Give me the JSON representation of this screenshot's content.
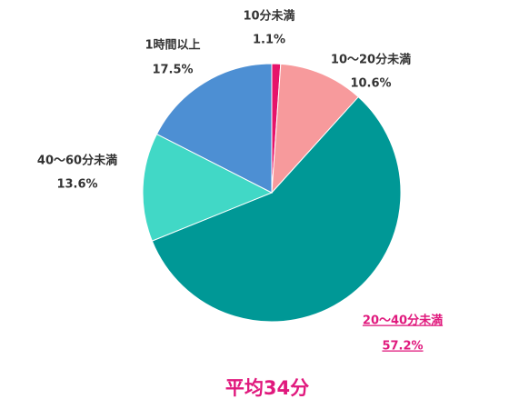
{
  "chart_data": {
    "type": "pie",
    "annotation": "平均34分",
    "categories": [
      "10分未満",
      "10〜20分未満",
      "20〜40分未満",
      "40〜60分未満",
      "1時間以上"
    ],
    "values": [
      1.1,
      10.6,
      57.2,
      13.6,
      17.5
    ],
    "value_labels": [
      "1.1%",
      "10.6%",
      "57.2%",
      "13.6%",
      "17.5%"
    ],
    "colors": [
      "#e6146a",
      "#f79a9c",
      "#009896",
      "#41d8c6",
      "#4d8fd3"
    ]
  }
}
